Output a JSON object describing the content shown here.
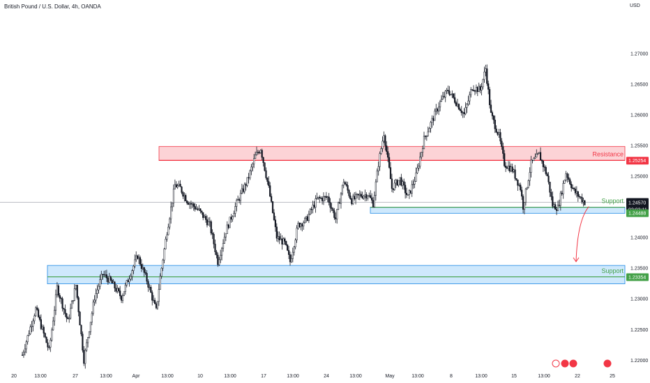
{
  "header": {
    "title": "British Pound / U.S. Dollar, 4h, OANDA",
    "currency": "USD"
  },
  "chart_data": {
    "type": "candlestick",
    "symbol": "GBPUSD",
    "timeframe": "4h",
    "ylim": [
      1.2185,
      1.2755
    ],
    "y_ticks": [
      "1.27000",
      "1.26500",
      "1.26000",
      "1.25500",
      "1.25000",
      "1.24000",
      "1.23500",
      "1.23000",
      "1.22500",
      "1.22000"
    ],
    "x_ticks": [
      "20",
      "13:00",
      "27",
      "13:00",
      "Apr",
      "13:00",
      "10",
      "13:00",
      "17",
      "13:00",
      "24",
      "13:00",
      "May",
      "13:00",
      "8",
      "13:00",
      "15",
      "13:00",
      "22",
      "25"
    ],
    "anchors": [
      [
        0,
        1.2208
      ],
      [
        10,
        1.2283
      ],
      [
        20,
        1.2215
      ],
      [
        26,
        1.2318
      ],
      [
        34,
        1.2262
      ],
      [
        40,
        1.2322
      ],
      [
        46,
        1.22
      ],
      [
        54,
        1.2302
      ],
      [
        60,
        1.234
      ],
      [
        66,
        1.2328
      ],
      [
        74,
        1.2302
      ],
      [
        86,
        1.237
      ],
      [
        93,
        1.233
      ],
      [
        100,
        1.228
      ],
      [
        103,
        1.2335
      ],
      [
        108,
        1.241
      ],
      [
        114,
        1.2485
      ],
      [
        118,
        1.248
      ],
      [
        123,
        1.246
      ],
      [
        132,
        1.2443
      ],
      [
        140,
        1.242
      ],
      [
        146,
        1.236
      ],
      [
        152,
        1.241
      ],
      [
        160,
        1.2455
      ],
      [
        168,
        1.2492
      ],
      [
        174,
        1.2532
      ],
      [
        178,
        1.2545
      ],
      [
        184,
        1.248
      ],
      [
        190,
        1.24
      ],
      [
        196,
        1.239
      ],
      [
        200,
        1.236
      ],
      [
        206,
        1.242
      ],
      [
        212,
        1.2428
      ],
      [
        220,
        1.2462
      ],
      [
        228,
        1.2465
      ],
      [
        234,
        1.243
      ],
      [
        240,
        1.2492
      ],
      [
        246,
        1.246
      ],
      [
        252,
        1.2468
      ],
      [
        258,
        1.247
      ],
      [
        262,
        1.2455
      ],
      [
        266,
        1.252
      ],
      [
        270,
        1.257
      ],
      [
        276,
        1.248
      ],
      [
        282,
        1.2495
      ],
      [
        288,
        1.2465
      ],
      [
        294,
        1.25
      ],
      [
        300,
        1.256
      ],
      [
        306,
        1.259
      ],
      [
        312,
        1.262
      ],
      [
        318,
        1.264
      ],
      [
        324,
        1.262
      ],
      [
        330,
        1.26
      ],
      [
        336,
        1.2645
      ],
      [
        342,
        1.264
      ],
      [
        346,
        1.2675
      ],
      [
        350,
        1.26
      ],
      [
        356,
        1.2565
      ],
      [
        360,
        1.252
      ],
      [
        366,
        1.251
      ],
      [
        372,
        1.248
      ],
      [
        374,
        1.245
      ],
      [
        380,
        1.252
      ],
      [
        386,
        1.2535
      ],
      [
        392,
        1.25
      ],
      [
        396,
        1.2452
      ],
      [
        400,
        1.2448
      ],
      [
        406,
        1.2505
      ],
      [
        412,
        1.2475
      ],
      [
        420,
        1.2457
      ]
    ],
    "zones": [
      {
        "kind": "resistance",
        "label": "Resistance",
        "low": 1.2525,
        "high": 1.2548,
        "start": "1 Apr",
        "end": "now",
        "color": "#f23645",
        "level_label": "1.25254"
      },
      {
        "kind": "support",
        "label": "Support",
        "low": 1.2439,
        "high": 1.2449,
        "start": "2 May",
        "end": "now",
        "color": "#1e88e5",
        "level_label": "1.24488"
      },
      {
        "kind": "support",
        "label": "Support",
        "low": 1.2324,
        "high": 1.2354,
        "start": "21 Mar",
        "end": "now",
        "color": "#1e88e5",
        "level_label": "1.23354"
      }
    ],
    "support_lines": [
      1.24488,
      1.23354
    ],
    "last_price": "1.24570",
    "countdown": "02:03:11",
    "projection": {
      "from": 1.245,
      "to": 1.236,
      "direction": "down"
    },
    "colors": {
      "up": "#ffffff",
      "down": "#131722",
      "support_text": "#43a047",
      "resistance_text": "#f23645",
      "line": "#43a047"
    }
  }
}
